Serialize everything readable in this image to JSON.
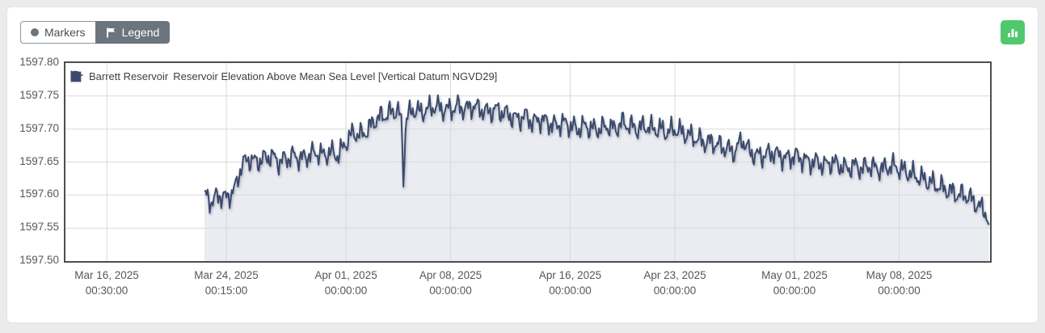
{
  "toolbar": {
    "markers_label": "Markers",
    "legend_label": "Legend"
  },
  "export_button": {
    "icon": "bar-chart-icon",
    "color": "#4fc96c"
  },
  "chart_data": {
    "type": "area",
    "legend": {
      "site": "Barrett Reservoir",
      "parameter": "Reservoir Elevation Above Mean Sea Level [Vertical Datum NGVD29]"
    },
    "line_color": "#3b4a6c",
    "fill_color": "#eaecf1",
    "grid_color": "#d9d9d9",
    "noise_amplitude": 0.022,
    "xlim_days": [
      -2.76,
      59.08
    ],
    "x_axis": {
      "ticks": [
        {
          "day": 0,
          "date": "Mar 16, 2025",
          "time": "00:30:00"
        },
        {
          "day": 8,
          "date": "Mar 24, 2025",
          "time": "00:15:00"
        },
        {
          "day": 16,
          "date": "Apr 01, 2025",
          "time": "00:00:00"
        },
        {
          "day": 23,
          "date": "Apr 08, 2025",
          "time": "00:00:00"
        },
        {
          "day": 31,
          "date": "Apr 16, 2025",
          "time": "00:00:00"
        },
        {
          "day": 38,
          "date": "Apr 23, 2025",
          "time": "00:00:00"
        },
        {
          "day": 46,
          "date": "May 01, 2025",
          "time": "00:00:00"
        },
        {
          "day": 53,
          "date": "May 08, 2025",
          "time": "00:00:00"
        }
      ]
    },
    "y_axis": {
      "min": 1597.5,
      "max": 1597.8,
      "step": 0.05,
      "ticks": [
        "1597.80",
        "1597.75",
        "1597.70",
        "1597.65",
        "1597.60",
        "1597.55",
        "1597.50"
      ]
    },
    "points_day_value": [
      [
        6.54,
        1597.6
      ],
      [
        7.0,
        1597.59
      ],
      [
        7.5,
        1597.6
      ],
      [
        8.0,
        1597.595
      ],
      [
        8.6,
        1597.61
      ],
      [
        9.0,
        1597.645
      ],
      [
        9.5,
        1597.655
      ],
      [
        10.0,
        1597.65
      ],
      [
        10.5,
        1597.655
      ],
      [
        11.0,
        1597.66
      ],
      [
        11.5,
        1597.65
      ],
      [
        12.0,
        1597.655
      ],
      [
        12.5,
        1597.66
      ],
      [
        13.0,
        1597.655
      ],
      [
        13.5,
        1597.66
      ],
      [
        14.0,
        1597.665
      ],
      [
        14.5,
        1597.66
      ],
      [
        15.0,
        1597.665
      ],
      [
        15.5,
        1597.66
      ],
      [
        16.0,
        1597.68
      ],
      [
        16.5,
        1597.695
      ],
      [
        17.0,
        1597.69
      ],
      [
        17.5,
        1597.7
      ],
      [
        18.0,
        1597.715
      ],
      [
        18.5,
        1597.72
      ],
      [
        19.0,
        1597.725
      ],
      [
        19.5,
        1597.73
      ],
      [
        19.75,
        1597.7
      ],
      [
        19.85,
        1597.615
      ],
      [
        20.0,
        1597.715
      ],
      [
        20.5,
        1597.73
      ],
      [
        21.0,
        1597.725
      ],
      [
        21.5,
        1597.73
      ],
      [
        22.0,
        1597.735
      ],
      [
        22.5,
        1597.73
      ],
      [
        23.0,
        1597.73
      ],
      [
        23.5,
        1597.735
      ],
      [
        24.0,
        1597.73
      ],
      [
        24.5,
        1597.735
      ],
      [
        25.0,
        1597.73
      ],
      [
        25.5,
        1597.725
      ],
      [
        26.0,
        1597.73
      ],
      [
        26.5,
        1597.725
      ],
      [
        27.0,
        1597.72
      ],
      [
        27.5,
        1597.715
      ],
      [
        28.0,
        1597.72
      ],
      [
        28.5,
        1597.71
      ],
      [
        29.0,
        1597.715
      ],
      [
        29.5,
        1597.71
      ],
      [
        30.0,
        1597.705
      ],
      [
        30.5,
        1597.71
      ],
      [
        31.0,
        1597.705
      ],
      [
        31.5,
        1597.7
      ],
      [
        32.0,
        1597.705
      ],
      [
        32.5,
        1597.7
      ],
      [
        33.0,
        1597.7
      ],
      [
        33.5,
        1597.705
      ],
      [
        34.0,
        1597.7
      ],
      [
        34.5,
        1597.71
      ],
      [
        35.0,
        1597.705
      ],
      [
        35.5,
        1597.7
      ],
      [
        36.0,
        1597.705
      ],
      [
        36.5,
        1597.7
      ],
      [
        37.0,
        1597.7
      ],
      [
        37.5,
        1597.695
      ],
      [
        38.0,
        1597.7
      ],
      [
        38.5,
        1597.695
      ],
      [
        39.0,
        1597.69
      ],
      [
        39.5,
        1597.685
      ],
      [
        40.0,
        1597.68
      ],
      [
        40.5,
        1597.68
      ],
      [
        41.0,
        1597.675
      ],
      [
        41.5,
        1597.67
      ],
      [
        42.0,
        1597.665
      ],
      [
        42.5,
        1597.685
      ],
      [
        43.0,
        1597.665
      ],
      [
        43.5,
        1597.66
      ],
      [
        44.0,
        1597.66
      ],
      [
        44.5,
        1597.665
      ],
      [
        45.0,
        1597.66
      ],
      [
        45.5,
        1597.655
      ],
      [
        46.0,
        1597.66
      ],
      [
        46.5,
        1597.655
      ],
      [
        47.0,
        1597.65
      ],
      [
        47.5,
        1597.65
      ],
      [
        48.0,
        1597.645
      ],
      [
        48.5,
        1597.65
      ],
      [
        49.0,
        1597.645
      ],
      [
        49.5,
        1597.64
      ],
      [
        50.0,
        1597.645
      ],
      [
        50.5,
        1597.64
      ],
      [
        51.0,
        1597.645
      ],
      [
        51.5,
        1597.64
      ],
      [
        52.0,
        1597.64
      ],
      [
        52.5,
        1597.645
      ],
      [
        53.0,
        1597.64
      ],
      [
        53.5,
        1597.635
      ],
      [
        54.0,
        1597.63
      ],
      [
        54.5,
        1597.625
      ],
      [
        55.0,
        1597.62
      ],
      [
        55.5,
        1597.615
      ],
      [
        56.0,
        1597.61
      ],
      [
        56.5,
        1597.605
      ],
      [
        57.0,
        1597.6
      ],
      [
        57.5,
        1597.6
      ],
      [
        58.0,
        1597.59
      ],
      [
        58.5,
        1597.58
      ],
      [
        58.8,
        1597.575
      ],
      [
        59.0,
        1597.555
      ]
    ]
  }
}
